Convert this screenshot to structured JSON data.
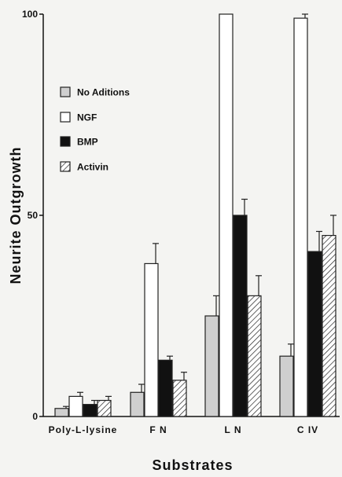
{
  "chart_data": {
    "type": "bar",
    "title": "",
    "xlabel": "Substrates",
    "ylabel": "Neurite Outgrowth",
    "ylim": [
      0,
      100
    ],
    "yticks": [
      0,
      50,
      100
    ],
    "categories": [
      "Poly-L-lysine",
      "F N",
      "L N",
      "C IV"
    ],
    "legend_position": "upper-left",
    "series": [
      {
        "name": "No Aditions",
        "fill": "#cfcfcf",
        "pattern": "solid",
        "values": [
          2,
          6,
          25,
          15
        ],
        "errors": [
          0.5,
          2,
          5,
          3
        ]
      },
      {
        "name": "NGF",
        "fill": "#ffffff",
        "pattern": "solid",
        "values": [
          5,
          38,
          100,
          99
        ],
        "errors": [
          1,
          5,
          0,
          1
        ]
      },
      {
        "name": "BMP",
        "fill": "#111111",
        "pattern": "solid",
        "values": [
          3,
          14,
          50,
          41
        ],
        "errors": [
          1,
          1,
          4,
          5
        ]
      },
      {
        "name": "Activin",
        "fill": "#ffffff",
        "pattern": "hatched",
        "values": [
          4,
          9,
          30,
          45
        ],
        "errors": [
          1,
          2,
          5,
          5
        ]
      }
    ]
  }
}
